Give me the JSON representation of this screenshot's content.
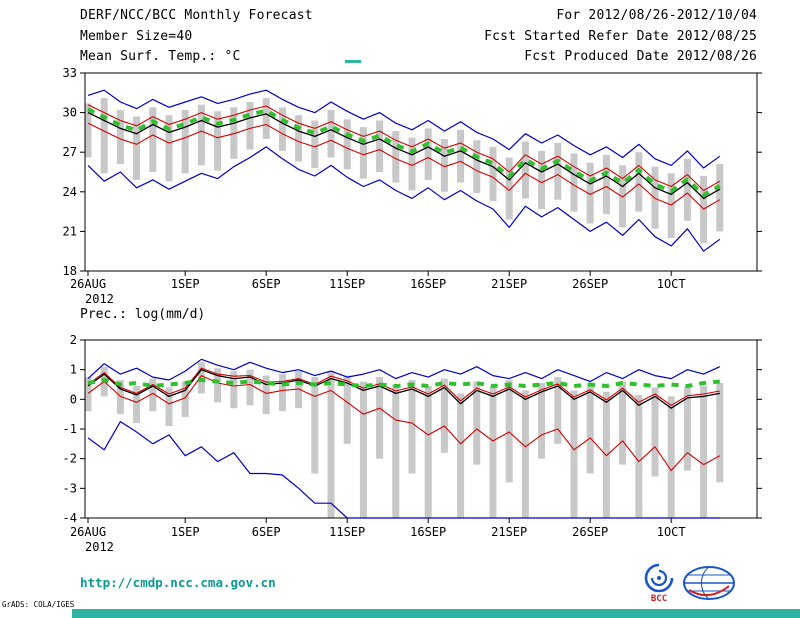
{
  "header": {
    "line1_left": "DERF/NCC/BCC Monthly Forecast",
    "line2_left": "Member Size=40",
    "line3_left": "Mean Surf. Temp.: °C",
    "line1_right": "For 2012/08/26-2012/10/04",
    "line2_right": "Fcst Started Refer Date 2012/08/25",
    "line3_right": "Fcst Produced Date 2012/08/26"
  },
  "footer": {
    "url": "http://cmdp.ncc.cma.gov.cn",
    "credit": "GrADS: COLA/IGES",
    "bcc_label": "BCC"
  },
  "colors": {
    "accent_teal": "#2fb3a3",
    "url_teal": "#0b9a92",
    "bar_gray": "#c8c8c8",
    "blue": "#0000c8",
    "red": "#d40000",
    "black": "#000000",
    "green": "#2fbf2f",
    "logo_blue": "#1a56c8",
    "logo_red": "#cc2222"
  },
  "chart_data": [
    {
      "type": "line",
      "title": "Mean Surf. Temp.: °C",
      "x_tick_labels": [
        "26AUG",
        "1SEP",
        "6SEP",
        "11SEP",
        "16SEP",
        "21SEP",
        "26SEP",
        "1OCT"
      ],
      "x_tick_days": [
        0,
        6,
        11,
        16,
        21,
        26,
        31,
        36
      ],
      "x_year_label": "2012",
      "ylim": [
        18,
        33
      ],
      "y_ticks": [
        33,
        30,
        27,
        24,
        21,
        18
      ],
      "grid": false,
      "legend": "none",
      "bars": {
        "name": "ensemble-spread",
        "color": "#c8c8c8",
        "high": [
          30.7,
          31.1,
          30.2,
          29.7,
          30.4,
          29.8,
          30.2,
          30.6,
          30.1,
          30.4,
          30.8,
          31.1,
          30.4,
          29.8,
          29.4,
          30.2,
          29.5,
          28.9,
          29.4,
          28.6,
          28.1,
          28.8,
          28.0,
          28.7,
          27.9,
          27.4,
          26.6,
          27.8,
          27.1,
          27.7,
          26.9,
          26.2,
          26.8,
          26.0,
          27.0,
          25.9,
          25.4,
          26.5,
          25.2,
          26.1
        ],
        "low": [
          26.6,
          25.4,
          26.1,
          24.9,
          25.5,
          24.8,
          25.4,
          26.0,
          25.6,
          26.5,
          27.2,
          28.0,
          27.1,
          26.3,
          25.8,
          26.6,
          25.7,
          25.0,
          25.5,
          24.7,
          24.1,
          24.9,
          24.0,
          24.7,
          23.9,
          23.3,
          21.9,
          23.5,
          22.7,
          23.4,
          22.5,
          21.6,
          22.3,
          21.3,
          22.5,
          21.2,
          20.5,
          21.8,
          20.1,
          21.0
        ]
      },
      "series": [
        {
          "name": "ensemble-max",
          "color": "#0000c8",
          "width": 1.2,
          "style": "solid",
          "values": [
            31.3,
            31.7,
            30.8,
            30.3,
            31.0,
            30.4,
            30.8,
            31.2,
            30.7,
            31.0,
            31.4,
            31.7,
            31.0,
            30.4,
            30.0,
            30.8,
            30.1,
            29.5,
            30.0,
            29.2,
            28.7,
            29.4,
            28.6,
            29.3,
            28.5,
            28.0,
            27.2,
            28.4,
            27.7,
            28.3,
            27.5,
            26.8,
            27.4,
            26.6,
            27.6,
            26.5,
            26.0,
            27.1,
            25.8,
            26.7
          ]
        },
        {
          "name": "upper-quartile",
          "color": "#d40000",
          "width": 1.1,
          "style": "solid",
          "values": [
            30.6,
            30.0,
            29.4,
            29.0,
            29.7,
            29.1,
            29.5,
            30.0,
            29.5,
            29.8,
            30.2,
            30.5,
            29.8,
            29.2,
            28.8,
            29.3,
            28.7,
            28.2,
            28.6,
            27.9,
            27.4,
            28.0,
            27.3,
            27.7,
            27.0,
            26.5,
            25.5,
            26.8,
            26.1,
            26.7,
            25.9,
            25.2,
            25.8,
            25.0,
            26.0,
            24.9,
            24.4,
            25.3,
            24.1,
            24.8
          ]
        },
        {
          "name": "ensemble-mean",
          "color": "#000000",
          "width": 1.3,
          "style": "solid",
          "values": [
            30.0,
            29.4,
            28.8,
            28.4,
            29.1,
            28.5,
            28.9,
            29.4,
            28.9,
            29.2,
            29.6,
            29.9,
            29.2,
            28.6,
            28.2,
            28.7,
            28.1,
            27.6,
            28.0,
            27.3,
            26.8,
            27.4,
            26.7,
            27.1,
            26.4,
            25.9,
            24.9,
            26.2,
            25.5,
            26.1,
            25.3,
            24.6,
            25.2,
            24.4,
            25.4,
            24.3,
            23.8,
            24.7,
            23.5,
            24.2
          ]
        },
        {
          "name": "lower-quartile",
          "color": "#d40000",
          "width": 1.1,
          "style": "solid",
          "values": [
            29.2,
            28.6,
            28.0,
            27.6,
            28.3,
            27.7,
            28.1,
            28.6,
            28.1,
            28.4,
            28.8,
            29.1,
            28.4,
            27.8,
            27.4,
            27.9,
            27.3,
            26.8,
            27.2,
            26.5,
            26.0,
            26.6,
            25.9,
            26.3,
            25.6,
            25.1,
            24.1,
            25.4,
            24.7,
            25.3,
            24.5,
            23.8,
            24.4,
            23.6,
            24.6,
            23.5,
            23.0,
            23.9,
            22.7,
            23.4
          ]
        },
        {
          "name": "ensemble-min",
          "color": "#0000c8",
          "width": 1.2,
          "style": "solid",
          "values": [
            26.0,
            24.8,
            25.5,
            24.3,
            24.9,
            24.2,
            24.8,
            25.4,
            25.0,
            25.9,
            26.6,
            27.4,
            26.5,
            25.7,
            25.2,
            26.0,
            25.1,
            24.4,
            24.9,
            24.1,
            23.5,
            24.3,
            23.4,
            24.1,
            23.3,
            22.7,
            21.3,
            22.9,
            22.1,
            22.8,
            21.9,
            21.0,
            21.7,
            20.7,
            21.9,
            20.6,
            19.9,
            21.2,
            19.5,
            20.4
          ]
        },
        {
          "name": "climatology",
          "color": "#2fbf2f",
          "width": 4,
          "style": "dashed",
          "values": [
            30.25,
            29.65,
            29.05,
            28.65,
            29.35,
            28.75,
            29.15,
            29.65,
            29.15,
            29.45,
            29.85,
            30.15,
            29.45,
            28.85,
            28.45,
            28.95,
            28.35,
            27.85,
            28.25,
            27.55,
            27.05,
            27.65,
            26.95,
            27.35,
            26.65,
            26.15,
            25.15,
            26.45,
            25.75,
            26.35,
            25.55,
            24.85,
            25.45,
            24.65,
            25.65,
            24.55,
            24.05,
            24.95,
            23.75,
            24.45
          ]
        }
      ]
    },
    {
      "type": "line",
      "title": "Prec.: log(mm/d)",
      "x_tick_labels": [
        "26AUG",
        "1SEP",
        "6SEP",
        "11SEP",
        "16SEP",
        "21SEP",
        "26SEP",
        "1OCT"
      ],
      "x_tick_days": [
        0,
        6,
        11,
        16,
        21,
        26,
        31,
        36
      ],
      "x_year_label": "2012",
      "ylim": [
        -4,
        2
      ],
      "y_ticks": [
        2,
        1,
        0,
        -1,
        -2,
        -3,
        -4
      ],
      "grid": false,
      "legend": "none",
      "bars": {
        "name": "ensemble-spread",
        "color": "#c8c8c8",
        "high": [
          0.75,
          1.1,
          0.65,
          0.45,
          0.7,
          0.4,
          0.6,
          1.25,
          1.05,
          0.95,
          1.0,
          0.8,
          0.85,
          0.95,
          0.75,
          0.95,
          0.8,
          0.6,
          0.75,
          0.5,
          0.65,
          0.45,
          0.7,
          0.2,
          0.6,
          0.4,
          0.65,
          0.3,
          0.55,
          0.75,
          0.3,
          0.55,
          0.25,
          0.6,
          0.15,
          0.4,
          0.1,
          0.4,
          0.45,
          0.55
        ],
        "low": [
          -0.4,
          0.1,
          -0.5,
          -0.8,
          -0.4,
          -0.9,
          -0.6,
          0.2,
          -0.1,
          -0.3,
          -0.2,
          -0.5,
          -0.4,
          -0.3,
          -2.5,
          -4.0,
          -1.5,
          -4.0,
          -2.0,
          -4.0,
          -2.5,
          -4.0,
          -1.8,
          -4.0,
          -2.2,
          -4.0,
          -2.8,
          -4.0,
          -2.0,
          -1.5,
          -4.0,
          -2.5,
          -4.0,
          -2.2,
          -4.0,
          -2.6,
          -4.0,
          -2.4,
          -4.0,
          -2.8
        ]
      },
      "series": [
        {
          "name": "ensemble-max",
          "color": "#0000c8",
          "width": 1.2,
          "style": "solid",
          "values": [
            0.7,
            1.2,
            0.85,
            1.05,
            0.75,
            0.65,
            0.95,
            1.35,
            1.15,
            1.0,
            1.25,
            1.05,
            0.9,
            1.0,
            0.8,
            0.95,
            0.75,
            0.85,
            1.0,
            0.7,
            0.9,
            0.75,
            1.0,
            0.85,
            1.1,
            0.8,
            0.7,
            0.9,
            0.7,
            1.0,
            0.8,
            0.6,
            0.9,
            0.7,
            1.0,
            0.8,
            0.7,
            1.0,
            0.85,
            1.1
          ]
        },
        {
          "name": "upper-quartile",
          "color": "#d40000",
          "width": 1.1,
          "style": "solid",
          "values": [
            0.5,
            0.9,
            0.4,
            0.2,
            0.5,
            0.18,
            0.38,
            1.05,
            0.85,
            0.78,
            0.8,
            0.58,
            0.6,
            0.7,
            0.5,
            0.78,
            0.62,
            0.38,
            0.52,
            0.28,
            0.42,
            0.18,
            0.48,
            -0.05,
            0.38,
            0.18,
            0.42,
            0.08,
            0.32,
            0.52,
            0.08,
            0.32,
            -0.02,
            0.38,
            -0.1,
            0.18,
            -0.2,
            0.12,
            0.18,
            0.28
          ]
        },
        {
          "name": "ensemble-mean",
          "color": "#000000",
          "width": 1.3,
          "style": "solid",
          "values": [
            0.45,
            0.85,
            0.35,
            0.15,
            0.45,
            0.1,
            0.3,
            1.0,
            0.8,
            0.7,
            0.75,
            0.5,
            0.55,
            0.65,
            0.45,
            0.7,
            0.55,
            0.3,
            0.45,
            0.2,
            0.35,
            0.1,
            0.4,
            -0.15,
            0.3,
            0.1,
            0.35,
            0.0,
            0.25,
            0.45,
            0.0,
            0.25,
            -0.1,
            0.3,
            -0.2,
            0.1,
            -0.3,
            0.05,
            0.1,
            0.2
          ]
        },
        {
          "name": "lower-quartile",
          "color": "#d40000",
          "width": 1.1,
          "style": "solid",
          "values": [
            0.2,
            0.6,
            0.1,
            -0.1,
            0.2,
            -0.15,
            0.05,
            0.8,
            0.55,
            0.45,
            0.5,
            0.2,
            0.3,
            0.35,
            0.1,
            0.3,
            -0.1,
            -0.5,
            -0.3,
            -0.7,
            -0.8,
            -1.2,
            -0.9,
            -1.5,
            -1.0,
            -1.4,
            -1.1,
            -1.6,
            -1.2,
            -1.0,
            -1.7,
            -1.3,
            -1.9,
            -1.4,
            -2.1,
            -1.6,
            -2.4,
            -1.8,
            -2.2,
            -1.9
          ]
        },
        {
          "name": "ensemble-min",
          "color": "#0000c8",
          "width": 1.2,
          "style": "solid",
          "values": [
            -1.3,
            -1.7,
            -0.75,
            -1.1,
            -1.5,
            -1.2,
            -1.9,
            -1.6,
            -2.1,
            -1.8,
            -2.5,
            -2.5,
            -2.55,
            -3.0,
            -3.5,
            -3.5,
            -4.0,
            -4.0,
            -4.0,
            -4.0,
            -4.0,
            -4.0,
            -4.0,
            -4.0,
            -4.0,
            -4.0,
            -4.0,
            -4.0,
            -4.0,
            -4.0,
            -4.0,
            -4.0,
            -4.0,
            -4.0,
            -4.0,
            -4.0,
            -4.0,
            -4.0,
            -4.0,
            -4.0
          ]
        },
        {
          "name": "climatology",
          "color": "#2fbf2f",
          "width": 4,
          "style": "dashed",
          "values": [
            0.55,
            0.65,
            0.5,
            0.55,
            0.45,
            0.5,
            0.55,
            0.65,
            0.6,
            0.55,
            0.6,
            0.55,
            0.5,
            0.55,
            0.5,
            0.55,
            0.5,
            0.45,
            0.5,
            0.45,
            0.5,
            0.45,
            0.55,
            0.5,
            0.55,
            0.45,
            0.5,
            0.45,
            0.5,
            0.55,
            0.45,
            0.5,
            0.45,
            0.55,
            0.5,
            0.45,
            0.5,
            0.45,
            0.55,
            0.6
          ]
        }
      ]
    }
  ]
}
